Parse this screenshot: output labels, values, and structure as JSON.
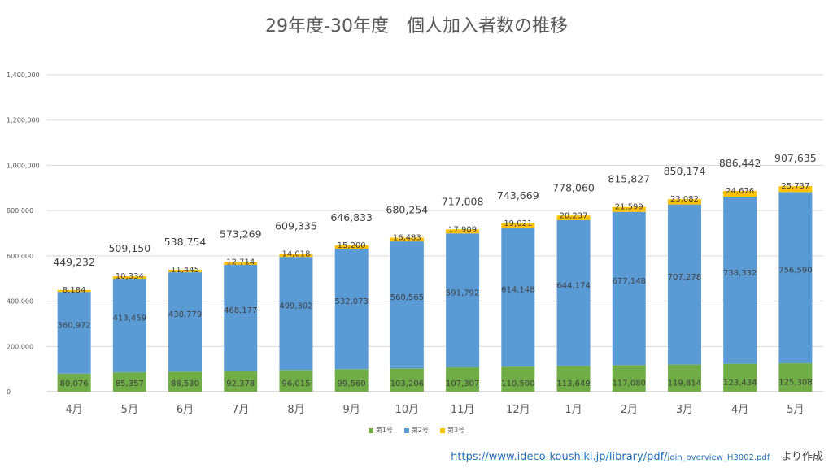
{
  "chart_data": {
    "type": "bar",
    "stacked": true,
    "title": "29年度-30年度　個人加入者数の推移",
    "categories": [
      "4月",
      "5月",
      "6月",
      "7月",
      "8月",
      "9月",
      "10月",
      "11月",
      "12月",
      "1月",
      "2月",
      "3月",
      "4月",
      "5月"
    ],
    "series": [
      {
        "name": "第1号",
        "color": "#70ad47",
        "values": [
          80076,
          85357,
          88530,
          92378,
          96015,
          99560,
          103206,
          107307,
          110500,
          113649,
          117080,
          119814,
          123434,
          125308
        ]
      },
      {
        "name": "第2号",
        "color": "#5b9bd5",
        "values": [
          360972,
          413459,
          438779,
          468177,
          499302,
          532073,
          560565,
          591792,
          614148,
          644174,
          677148,
          707278,
          738332,
          756590
        ]
      },
      {
        "name": "第3号",
        "color": "#ffc000",
        "values": [
          8184,
          10334,
          11445,
          12714,
          14018,
          15200,
          16483,
          17909,
          19021,
          20237,
          21599,
          23082,
          24676,
          25737
        ]
      }
    ],
    "totals": [
      449232,
      509150,
      538754,
      573269,
      609335,
      646833,
      680254,
      717008,
      743669,
      778060,
      815827,
      850174,
      886442,
      907635
    ],
    "ylim": [
      0,
      1400000
    ],
    "yticks": [
      0,
      200000,
      400000,
      600000,
      800000,
      1000000,
      1200000,
      1400000
    ],
    "grid": true,
    "legend_position": "bottom"
  },
  "legend": [
    "第1号",
    "第2号",
    "第3号"
  ],
  "source": {
    "link_main": "https://www.ideco-koushiki.jp/library/pdf/",
    "link_small": "join_overview_H3002.pdf",
    "suffix": "より作成"
  }
}
